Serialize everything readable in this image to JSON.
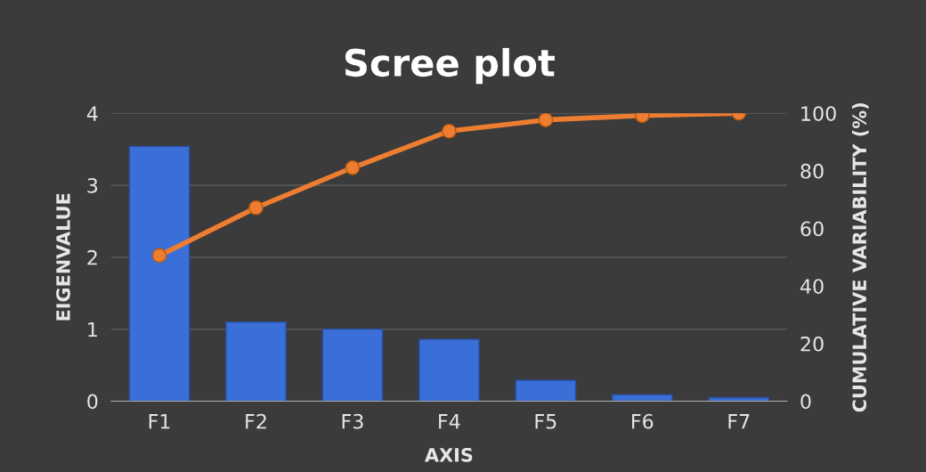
{
  "chart_data": {
    "type": "bar",
    "title": "Scree plot",
    "xlabel": "AXIS",
    "ylabel": "EIGENVALUE",
    "y2label": "CUMULATIVE VARIABILITY (%)",
    "categories": [
      "F1",
      "F2",
      "F3",
      "F4",
      "F5",
      "F6",
      "F7"
    ],
    "series": [
      {
        "color": "#3a6fd8",
        "values": [
          3.54,
          1.1,
          1.0,
          0.86,
          0.29,
          0.09,
          0.05
        ]
      },
      {
        "type": "line",
        "axis": "y2",
        "color": "#ed7d31",
        "marker": "circle",
        "values": [
          50.6,
          67.2,
          81.1,
          93.8,
          97.7,
          99.2,
          100
        ]
      }
    ],
    "ylim": [
      0,
      4
    ],
    "yticks": [
      0,
      1,
      2,
      3,
      4
    ],
    "y2lim": [
      0,
      100
    ],
    "y2ticks": [
      0,
      20,
      40,
      60,
      80,
      100
    ],
    "grid": "y"
  }
}
